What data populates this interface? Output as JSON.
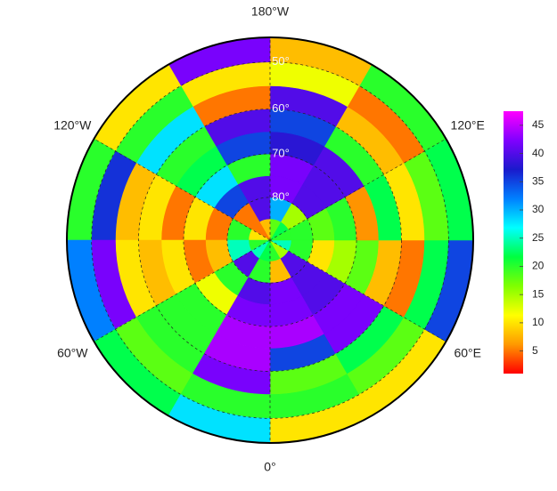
{
  "map": {
    "type": "polar",
    "lat_range": [
      45,
      90
    ],
    "lat_edges": [
      90,
      85,
      80,
      75,
      70,
      65,
      60,
      55,
      50,
      45
    ],
    "lon_edges": [
      0,
      30,
      60,
      90,
      120,
      150,
      180,
      210,
      240,
      270,
      300,
      330,
      360
    ],
    "values": [
      [
        20,
        15,
        25,
        20,
        22,
        18,
        8,
        5,
        10,
        20,
        25,
        22
      ],
      [
        8,
        40,
        20,
        20,
        15,
        30,
        40,
        5,
        20,
        25,
        40,
        20
      ],
      [
        42,
        40,
        10,
        18,
        40,
        42,
        40,
        35,
        5,
        8,
        20,
        40
      ],
      [
        42,
        40,
        15,
        20,
        40,
        42,
        20,
        28,
        10,
        5,
        12,
        42
      ],
      [
        44,
        42,
        18,
        6,
        40,
        38,
        35,
        22,
        5,
        10,
        20,
        44
      ],
      [
        35,
        42,
        8,
        22,
        20,
        35,
        40,
        20,
        10,
        8,
        20,
        44
      ],
      [
        18,
        22,
        5,
        10,
        8,
        40,
        5,
        28,
        8,
        10,
        20,
        42
      ],
      [
        20,
        18,
        22,
        18,
        5,
        12,
        10,
        20,
        36,
        42,
        18,
        20
      ],
      [
        10,
        10,
        35,
        22,
        20,
        8,
        42,
        10,
        20,
        32,
        22,
        28
      ]
    ],
    "lon_labels": [
      {
        "value": 180,
        "label": "180°W"
      },
      {
        "value": -120,
        "label": "120°W"
      },
      {
        "value": 120,
        "label": "120°E"
      },
      {
        "value": -60,
        "label": "60°W"
      },
      {
        "value": 60,
        "label": "60°E"
      },
      {
        "value": 0,
        "label": "0°"
      }
    ],
    "lat_labels": [
      {
        "value": 50,
        "label": "50°"
      },
      {
        "value": 60,
        "label": "60°"
      },
      {
        "value": 70,
        "label": "70°"
      },
      {
        "value": 80,
        "label": "80°"
      }
    ],
    "colorbar": {
      "lim": [
        1,
        47.5
      ],
      "ticks": [
        5,
        10,
        15,
        20,
        25,
        30,
        35,
        40,
        45
      ],
      "colors": [
        "#ff0000",
        "#ff9900",
        "#ffff00",
        "#80ff00",
        "#00ff40",
        "#00ffff",
        "#0080ff",
        "#1a1acc",
        "#8000ff",
        "#ff00ff"
      ]
    }
  }
}
